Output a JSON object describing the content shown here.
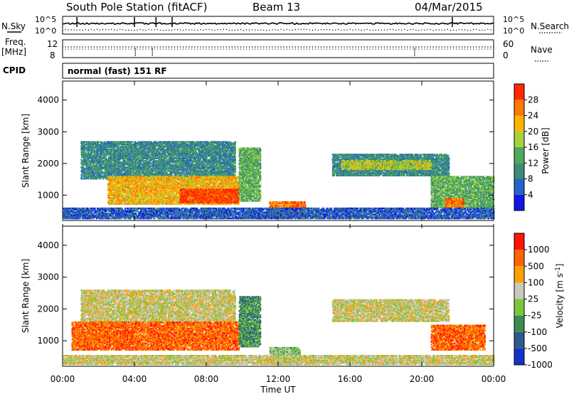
{
  "header": {
    "station": "South Pole Station (fitACF)",
    "beam": "Beam 13",
    "date": "04/Mar/2015"
  },
  "status_panels": {
    "nsky_label": "N.Sky",
    "nsky_ticks": [
      "10^5",
      "10^0"
    ],
    "nsearch_label": "N.Search",
    "nsearch_ticks": [
      "10^5",
      "10^0"
    ],
    "freq_label_1": "Freq.",
    "freq_label_2": "[MHz]",
    "freq_ticks": [
      "12",
      "8"
    ],
    "nave_label": "Nave",
    "nave_ticks": [
      "60",
      "0"
    ],
    "cpid_label": "CPID",
    "cpid_text": "normal (fast) 151 RF"
  },
  "chart_data": [
    {
      "type": "heatmap",
      "name": "power",
      "ylabel": "Slant Range [km]",
      "yticks": [
        "1000",
        "2000",
        "3000",
        "4000"
      ],
      "ylim": [
        200,
        4600
      ],
      "xlim_hours": [
        0,
        24
      ],
      "colorbar_label": "Power [dB]",
      "colorbar_ticks": [
        "4",
        "8",
        "12",
        "16",
        "20",
        "24",
        "28"
      ],
      "colors": [
        "#1414e6",
        "#2464c8",
        "#3c8c78",
        "#4caa5a",
        "#a8d23c",
        "#ffb400",
        "#ff7800",
        "#ff2800"
      ],
      "regions": [
        {
          "t": [
            1.0,
            9.6
          ],
          "r": [
            1500,
            2700
          ],
          "level": 2
        },
        {
          "t": [
            2.5,
            9.8
          ],
          "r": [
            700,
            1600
          ],
          "level": 5
        },
        {
          "t": [
            6.5,
            9.8
          ],
          "r": [
            750,
            1200
          ],
          "level": 7
        },
        {
          "t": [
            9.8,
            11.0
          ],
          "r": [
            800,
            2500
          ],
          "level": 3
        },
        {
          "t": [
            11.5,
            13.5
          ],
          "r": [
            300,
            800
          ],
          "level": 6
        },
        {
          "t": [
            15.0,
            21.5
          ],
          "r": [
            1600,
            2300
          ],
          "level": 2
        },
        {
          "t": [
            15.5,
            20.5
          ],
          "r": [
            1800,
            2100
          ],
          "level": 4
        },
        {
          "t": [
            20.5,
            24.0
          ],
          "r": [
            600,
            1600
          ],
          "level": 3
        },
        {
          "t": [
            21.3,
            22.3
          ],
          "r": [
            600,
            900
          ],
          "level": 6
        },
        {
          "t": [
            0.0,
            24.0
          ],
          "r": [
            250,
            600
          ],
          "level": 1
        }
      ]
    },
    {
      "type": "heatmap",
      "name": "velocity",
      "ylabel": "Slant Range [km]",
      "yticks": [
        "1000",
        "2000",
        "3000",
        "4000"
      ],
      "ylim": [
        200,
        4600
      ],
      "xlim_hours": [
        0,
        24
      ],
      "xticks": [
        "00:00",
        "04:00",
        "08:00",
        "12:00",
        "16:00",
        "20:00",
        "00:00"
      ],
      "xlabel": "Time UT",
      "colorbar_label": "Velocity [m s",
      "colorbar_ticks": [
        "1000",
        "500",
        "100",
        "25",
        "-25",
        "-100",
        "-500",
        "-1000"
      ],
      "colors": [
        "#1432c8",
        "#2c5a8c",
        "#3c8c50",
        "#78c83c",
        "#c8c8c0",
        "#ffa000",
        "#ff6400",
        "#ff1400"
      ],
      "regions": [
        {
          "t": [
            1.0,
            9.6
          ],
          "r": [
            1600,
            2600
          ],
          "level": 4
        },
        {
          "t": [
            0.5,
            9.8
          ],
          "r": [
            700,
            1600
          ],
          "level": 6
        },
        {
          "t": [
            9.8,
            11.0
          ],
          "r": [
            800,
            2400
          ],
          "level": 2
        },
        {
          "t": [
            11.5,
            13.2
          ],
          "r": [
            250,
            800
          ],
          "level": 3
        },
        {
          "t": [
            15.0,
            21.5
          ],
          "r": [
            1600,
            2300
          ],
          "level": 4
        },
        {
          "t": [
            20.5,
            23.5
          ],
          "r": [
            700,
            1500
          ],
          "level": 6
        },
        {
          "t": [
            0.0,
            24.0
          ],
          "r": [
            250,
            550
          ],
          "level": 4
        }
      ]
    }
  ]
}
